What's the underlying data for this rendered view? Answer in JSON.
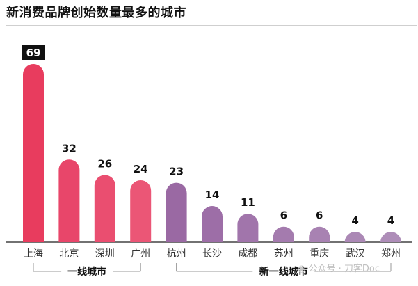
{
  "title": "新消费品牌创始数量最多的城市",
  "watermark": "公众号 · 刀客Doc",
  "chart_data": {
    "type": "bar",
    "categories": [
      "上海",
      "北京",
      "深圳",
      "广州",
      "杭州",
      "长沙",
      "成都",
      "苏州",
      "重庆",
      "武汉",
      "郑州"
    ],
    "values": [
      69,
      32,
      26,
      24,
      23,
      14,
      11,
      6,
      6,
      4,
      4
    ],
    "ylim": [
      0,
      69
    ],
    "grid": false,
    "groups": [
      {
        "label": "一线城市",
        "start": 0,
        "end": 3
      },
      {
        "label": "新一线城市",
        "start": 4,
        "end": 10
      }
    ],
    "colors": {
      "tier1": [
        "#e83c5e",
        "#e8466a",
        "#ea4e70",
        "#eb5676"
      ],
      "newtier1": [
        "#9a69a3",
        "#9d6ea7",
        "#a175ab",
        "#a47bae",
        "#a882b2",
        "#ab88b5",
        "#ae8db8"
      ],
      "highlight_label_bg": "#111111",
      "highlight_label_fg": "#ffffff",
      "label_fg": "#111111",
      "axis": "#444444",
      "bracket": "#999999"
    }
  }
}
